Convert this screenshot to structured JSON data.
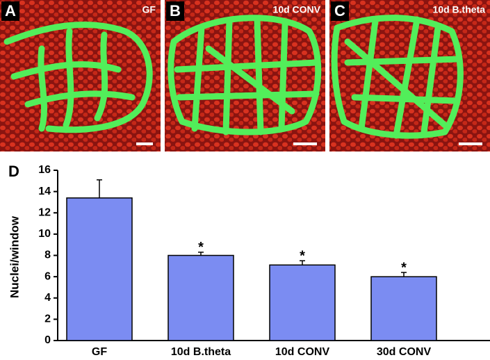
{
  "panels": [
    {
      "letter": "A",
      "label": "GF"
    },
    {
      "letter": "B",
      "label": "10d CONV"
    },
    {
      "letter": "C",
      "label": "10d B.theta"
    }
  ],
  "chart_panel": "D",
  "chart_data": {
    "type": "bar",
    "y_label": "Nuclei/window",
    "categories": [
      "GF",
      "10d B.theta",
      "10d CONV",
      "30d CONV"
    ],
    "values": [
      13.4,
      8.0,
      7.1,
      6.0
    ],
    "errors": [
      1.7,
      0.3,
      0.4,
      0.4
    ],
    "significance": [
      null,
      "*",
      "*",
      "*"
    ],
    "color": "#7b8cf2",
    "ylim": [
      0,
      16
    ],
    "yticks": [
      0,
      2,
      4,
      6,
      8,
      10,
      12,
      14,
      16
    ],
    "grid": false
  }
}
